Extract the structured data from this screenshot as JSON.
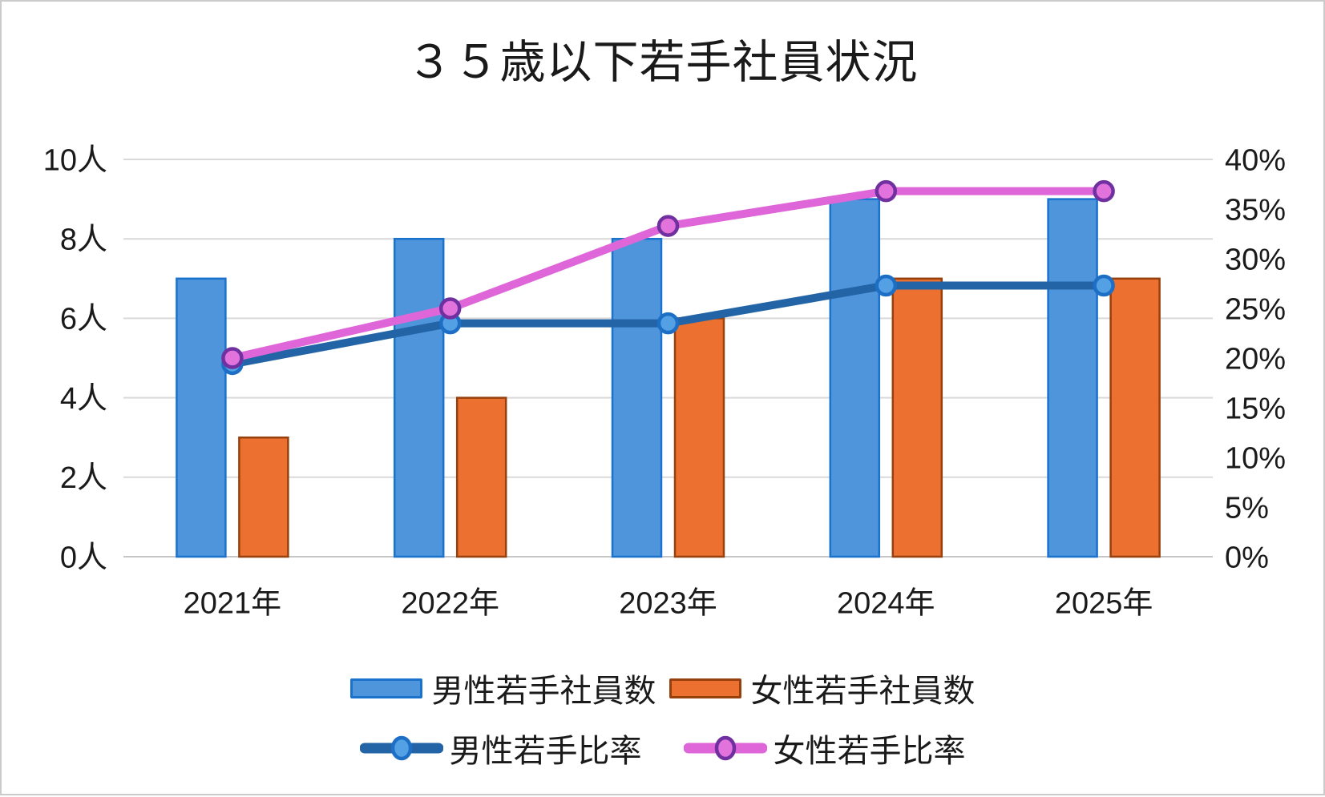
{
  "title": "３５歳以下若手社員状況",
  "legend": {
    "male_bars": "男性若手社員数",
    "female_bars": "女性若手社員数",
    "male_line": "男性若手比率",
    "female_line": "女性若手比率"
  },
  "colors": {
    "male_bar_fill": "#4E95DC",
    "male_bar_stroke": "#1B72CD",
    "female_bar_fill": "#EC7030",
    "female_bar_stroke": "#96400E",
    "male_line": "#2264A6",
    "male_marker_fill": "#54A0E4",
    "male_marker_stroke": "#1C6FC5",
    "female_line": "#DF66D8",
    "female_marker_fill": "#E273DC",
    "female_marker_stroke": "#7030A0",
    "gridline": "#D9D9D9",
    "axis_line": "#C6C6C6",
    "text": "#1A1A1A"
  },
  "chart_data": {
    "type": "bar+line combo",
    "title": "３５歳以下若手社員状況",
    "categories": [
      "2021年",
      "2022年",
      "2023年",
      "2024年",
      "2025年"
    ],
    "bar_series": [
      {
        "name": "男性若手社員数",
        "axis": "left",
        "unit": "人",
        "values": [
          7,
          8,
          8,
          9,
          9
        ]
      },
      {
        "name": "女性若手社員数",
        "axis": "left",
        "unit": "人",
        "values": [
          3,
          4,
          6,
          7,
          7
        ]
      }
    ],
    "line_series": [
      {
        "name": "男性若手比率",
        "axis": "right",
        "unit": "%",
        "values": [
          19.4,
          23.5,
          23.5,
          27.3,
          27.3
        ]
      },
      {
        "name": "女性若手比率",
        "axis": "right",
        "unit": "%",
        "values": [
          20,
          25,
          33.3,
          36.8,
          36.8
        ]
      }
    ],
    "left_axis": {
      "min": 0,
      "max": 10,
      "ticks": [
        {
          "value": 10,
          "label": "10人"
        },
        {
          "value": 8,
          "label": "8人"
        },
        {
          "value": 6,
          "label": "6人"
        },
        {
          "value": 4,
          "label": "4人"
        },
        {
          "value": 2,
          "label": "2人"
        },
        {
          "value": 0,
          "label": "0人"
        }
      ]
    },
    "right_axis": {
      "min": 0,
      "max": 40,
      "ticks": [
        {
          "value": 40,
          "label": "40%"
        },
        {
          "value": 35,
          "label": "35%"
        },
        {
          "value": 30,
          "label": "30%"
        },
        {
          "value": 25,
          "label": "25%"
        },
        {
          "value": 20,
          "label": "20%"
        },
        {
          "value": 15,
          "label": "15%"
        },
        {
          "value": 10,
          "label": "10%"
        },
        {
          "value": 5,
          "label": "5%"
        },
        {
          "value": 0,
          "label": "0%"
        }
      ]
    },
    "grid": "horizontal",
    "legend_position": "bottom"
  }
}
